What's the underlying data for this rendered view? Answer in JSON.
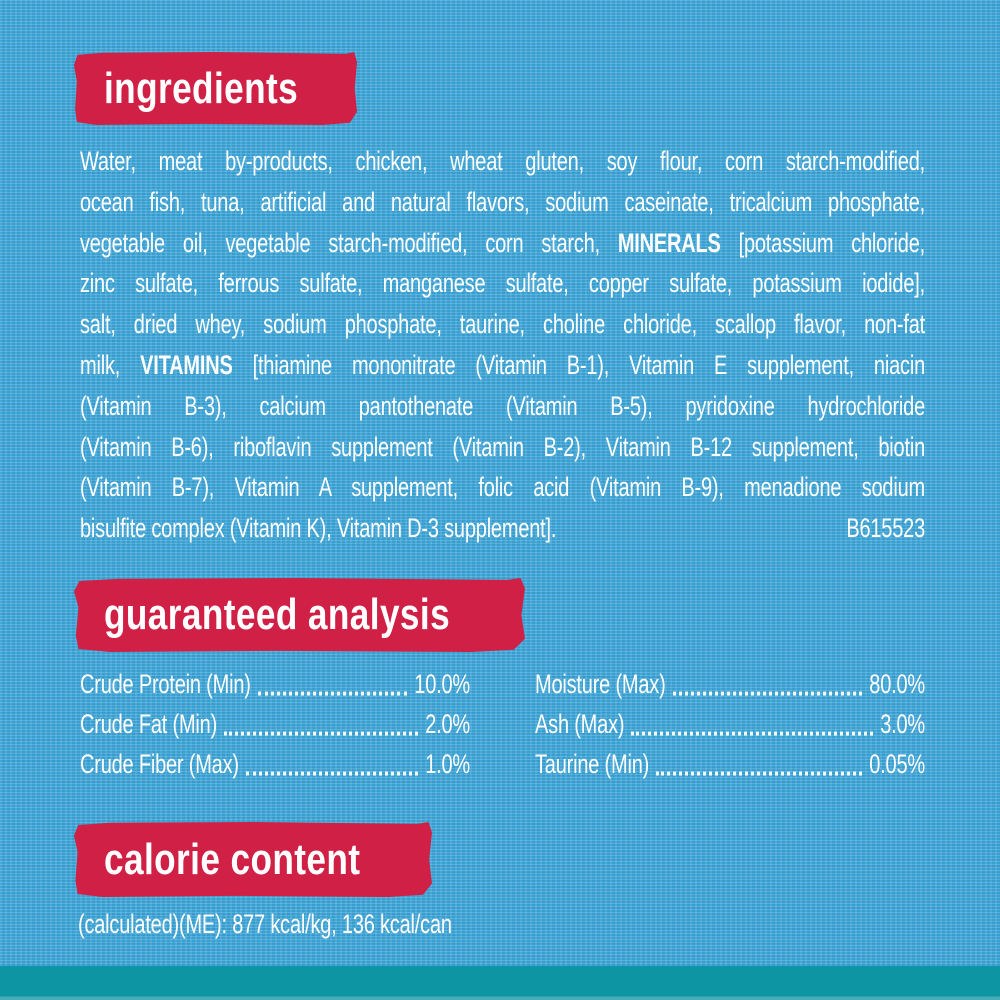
{
  "colors": {
    "background_blue": "#3ba3d5",
    "banner_red": "#d02045",
    "text_white": "#ffffff",
    "stripe_teal": "#0d95a3"
  },
  "ingredients": {
    "title": "ingredients",
    "lines": [
      [
        {
          "text": "Water, meat by-products, chicken, wheat gluten, soy flour, corn starch-modified,",
          "bold": false
        }
      ],
      [
        {
          "text": "ocean fish, tuna, artificial and natural flavors, sodium caseinate, tricalcium phosphate,",
          "bold": false
        }
      ],
      [
        {
          "text": "vegetable oil, vegetable starch-modified, corn starch, ",
          "bold": false
        },
        {
          "text": "MINERALS",
          "bold": true
        },
        {
          "text": " [potassium chloride,",
          "bold": false
        }
      ],
      [
        {
          "text": "zinc sulfate, ferrous sulfate, manganese sulfate, copper sulfate, potassium iodide],",
          "bold": false
        }
      ],
      [
        {
          "text": "salt, dried whey, sodium phosphate, taurine, choline chloride, scallop flavor, non-fat",
          "bold": false
        }
      ],
      [
        {
          "text": "milk, ",
          "bold": false
        },
        {
          "text": "VITAMINS",
          "bold": true
        },
        {
          "text": " [thiamine mononitrate (Vitamin B-1), Vitamin E supplement, niacin",
          "bold": false
        }
      ],
      [
        {
          "text": "(Vitamin B-3), calcium pantothenate (Vitamin B-5), pyridoxine hydrochloride",
          "bold": false
        }
      ],
      [
        {
          "text": "(Vitamin B-6), riboflavin supplement (Vitamin B-2), Vitamin B-12 supplement, biotin",
          "bold": false
        }
      ],
      [
        {
          "text": "(Vitamin B-7), Vitamin A supplement, folic acid (Vitamin B-9), menadione sodium",
          "bold": false
        }
      ]
    ],
    "last_line": {
      "text": "bisulfite complex (Vitamin K), Vitamin D-3 supplement].",
      "code": "B615523"
    }
  },
  "guaranteed_analysis": {
    "title": "guaranteed analysis",
    "left_rows": [
      {
        "label": "Crude Protein (Min)",
        "value": "10.0%"
      },
      {
        "label": "Crude Fat (Min)",
        "value": "2.0%"
      },
      {
        "label": "Crude Fiber (Max)",
        "value": "1.0%"
      }
    ],
    "right_rows": [
      {
        "label": "Moisture (Max)",
        "value": "80.0%"
      },
      {
        "label": "Ash (Max)",
        "value": "3.0%"
      },
      {
        "label": "Taurine (Min)",
        "value": "0.05%"
      }
    ]
  },
  "calorie_content": {
    "title": "calorie content",
    "line": "(calculated)(ME): 877 kcal/kg, 136 kcal/can"
  }
}
